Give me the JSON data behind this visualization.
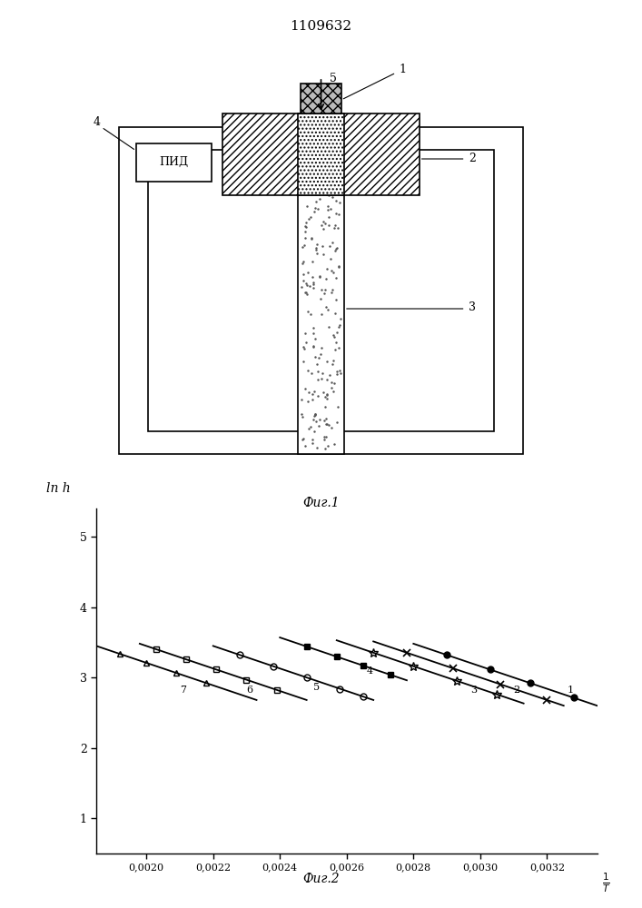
{
  "title": "1109632",
  "fig1_label": "Фиг.1",
  "fig2_label": "Фиг.2",
  "ylabel": "ln h",
  "xlabel": "1\nT",
  "xlim": [
    0.00185,
    0.00335
  ],
  "ylim": [
    0.5,
    5.4
  ],
  "xticks": [
    0.002,
    0.0022,
    0.0024,
    0.0026,
    0.0028,
    0.003,
    0.0032
  ],
  "xtick_labels": [
    "0,0020",
    "0,0022",
    "0,0024",
    "0,0026",
    "0,0028",
    "0,0030",
    "0,0032"
  ],
  "yticks": [
    1,
    2,
    3,
    4,
    5
  ],
  "slope": -1600,
  "background_color": "#ffffff",
  "fig_width": 7.07,
  "fig_height": 10.0
}
